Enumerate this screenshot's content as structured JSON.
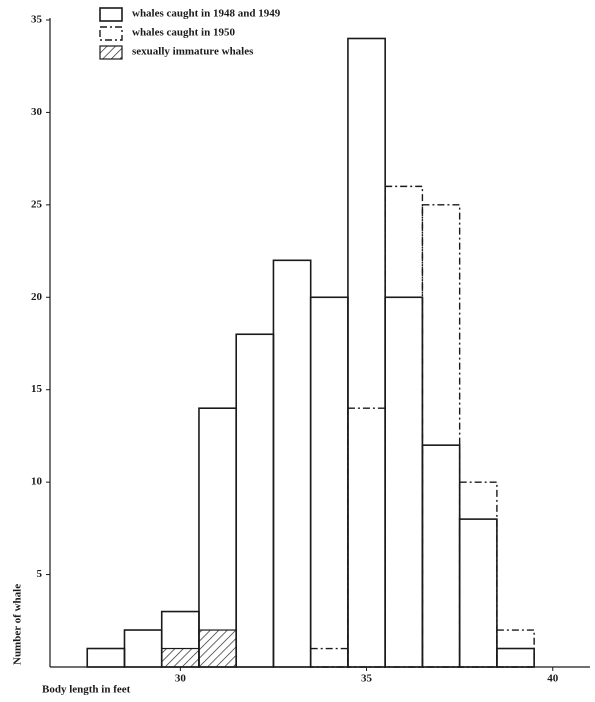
{
  "chart_data": {
    "type": "histogram",
    "xlabel": "Body length in feet",
    "ylabel": "Number of whale",
    "bins": [
      27.5,
      28.5,
      29.5,
      30.5,
      31.5,
      32.5,
      33.5,
      34.5,
      35.5,
      36.5,
      37.5,
      38.5,
      39.5
    ],
    "series": [
      {
        "name": "whales caught in 1948 and 1949",
        "color": "#1a1a1a",
        "values": [
          1,
          2,
          3,
          14,
          18,
          22,
          20,
          34,
          20,
          12,
          8,
          1
        ]
      },
      {
        "name": "whales caught in 1950",
        "color": "#1a1a1a",
        "values": [
          0,
          0,
          0,
          0,
          0,
          0,
          1,
          14,
          26,
          25,
          10,
          2
        ]
      },
      {
        "name": "sexually immature whales",
        "color": "#1a1a1a",
        "values": [
          0,
          0,
          1,
          2,
          0,
          0,
          0,
          0,
          0,
          0,
          0,
          0
        ]
      }
    ],
    "xlim": [
      26.5,
      41
    ],
    "ylim": [
      0,
      35
    ],
    "xticks": [
      30,
      35,
      40
    ],
    "yticks": [
      5,
      10,
      15,
      20,
      25,
      30,
      35
    ]
  }
}
